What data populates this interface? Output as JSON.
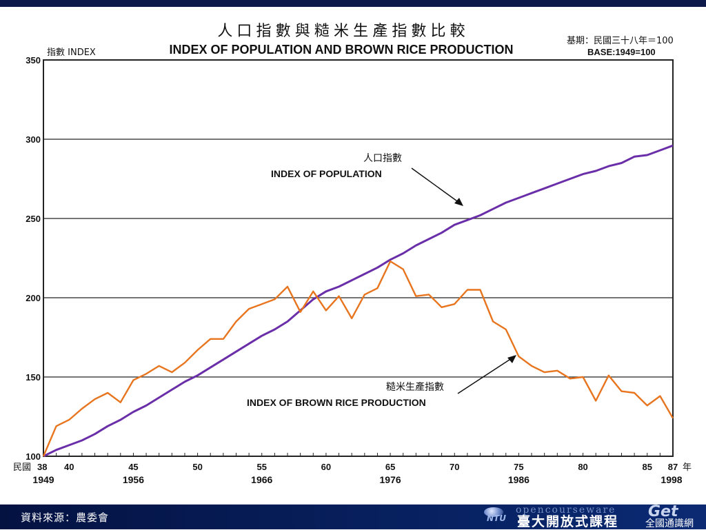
{
  "header": {
    "title_zh": "人 口 指 數 與 糙 米 生 產 指 數 比 較",
    "title_en": "INDEX OF POPULATION AND BROWN RICE PRODUCTION",
    "base_zh": "基期：民國三十八年＝100",
    "base_en": "BASE:1949=100",
    "y_axis_label": "指數  INDEX"
  },
  "annotations": {
    "population_zh": "人口指數",
    "population_en": "INDEX OF POPULATION",
    "rice_zh": "糙米生產指數",
    "rice_en": "INDEX OF BROWN RICE PRODUCTION"
  },
  "x_axis": {
    "roc_prefix": "民國",
    "year_suffix": "年",
    "roc_ticks": [
      {
        "roc": 38,
        "label": "38"
      },
      {
        "roc": 40,
        "label": "40"
      },
      {
        "roc": 45,
        "label": "45"
      },
      {
        "roc": 50,
        "label": "50"
      },
      {
        "roc": 55,
        "label": "55"
      },
      {
        "roc": 60,
        "label": "60"
      },
      {
        "roc": 65,
        "label": "65"
      },
      {
        "roc": 70,
        "label": "70"
      },
      {
        "roc": 75,
        "label": "75"
      },
      {
        "roc": 80,
        "label": "80"
      },
      {
        "roc": 85,
        "label": "85"
      },
      {
        "roc": 87,
        "label": "87"
      }
    ],
    "ad_ticks": [
      {
        "roc": 38,
        "label": "1949"
      },
      {
        "roc": 45,
        "label": "1956"
      },
      {
        "roc": 55,
        "label": "1966"
      },
      {
        "roc": 65,
        "label": "1976"
      },
      {
        "roc": 75,
        "label": "1986"
      },
      {
        "roc": 87,
        "label": "1998"
      }
    ]
  },
  "chart_data": {
    "type": "line",
    "title": "INDEX OF POPULATION AND BROWN RICE PRODUCTION",
    "xlabel": "",
    "ylabel": "指數  INDEX",
    "xlim": [
      38,
      87
    ],
    "ylim": [
      100,
      350
    ],
    "y_ticks": [
      100,
      150,
      200,
      250,
      300,
      350
    ],
    "grid_y": [
      150,
      200,
      250,
      300
    ],
    "x": [
      38,
      39,
      40,
      41,
      42,
      43,
      44,
      45,
      46,
      47,
      48,
      49,
      50,
      51,
      52,
      53,
      54,
      55,
      56,
      57,
      58,
      59,
      60,
      61,
      62,
      63,
      64,
      65,
      66,
      67,
      68,
      69,
      70,
      71,
      72,
      73,
      74,
      75,
      76,
      77,
      78,
      79,
      80,
      81,
      82,
      83,
      84,
      85,
      86,
      87
    ],
    "series": [
      {
        "name": "INDEX OF POPULATION",
        "color": "#6a2fa8",
        "values": [
          100,
          104,
          107,
          110,
          114,
          119,
          123,
          128,
          132,
          137,
          142,
          147,
          151,
          156,
          161,
          166,
          171,
          176,
          180,
          185,
          192,
          199,
          204,
          207,
          211,
          215,
          219,
          224,
          228,
          233,
          237,
          241,
          246,
          249,
          252,
          256,
          260,
          263,
          266,
          269,
          272,
          275,
          278,
          280,
          283,
          285,
          289,
          290,
          293,
          296
        ]
      },
      {
        "name": "INDEX OF BROWN RICE PRODUCTION",
        "color": "#e8741e",
        "values": [
          100,
          119,
          123,
          130,
          136,
          140,
          134,
          148,
          152,
          157,
          153,
          159,
          167,
          174,
          174,
          185,
          193,
          196,
          199,
          207,
          191,
          204,
          192,
          201,
          187,
          202,
          206,
          223,
          218,
          201,
          202,
          194,
          196,
          205,
          205,
          185,
          180,
          163,
          157,
          153,
          154,
          149,
          150,
          135,
          151,
          141,
          140,
          132,
          138,
          124
        ]
      }
    ],
    "legend_position": "inline annotations with arrows"
  },
  "footer": {
    "source": "資料來源：農委會",
    "ocw_text": "opencourseware",
    "ntu_short": "NTU",
    "ntu_name": "臺大開放式課程",
    "general_ed": "全國通識網",
    "logo_text": "Get"
  }
}
